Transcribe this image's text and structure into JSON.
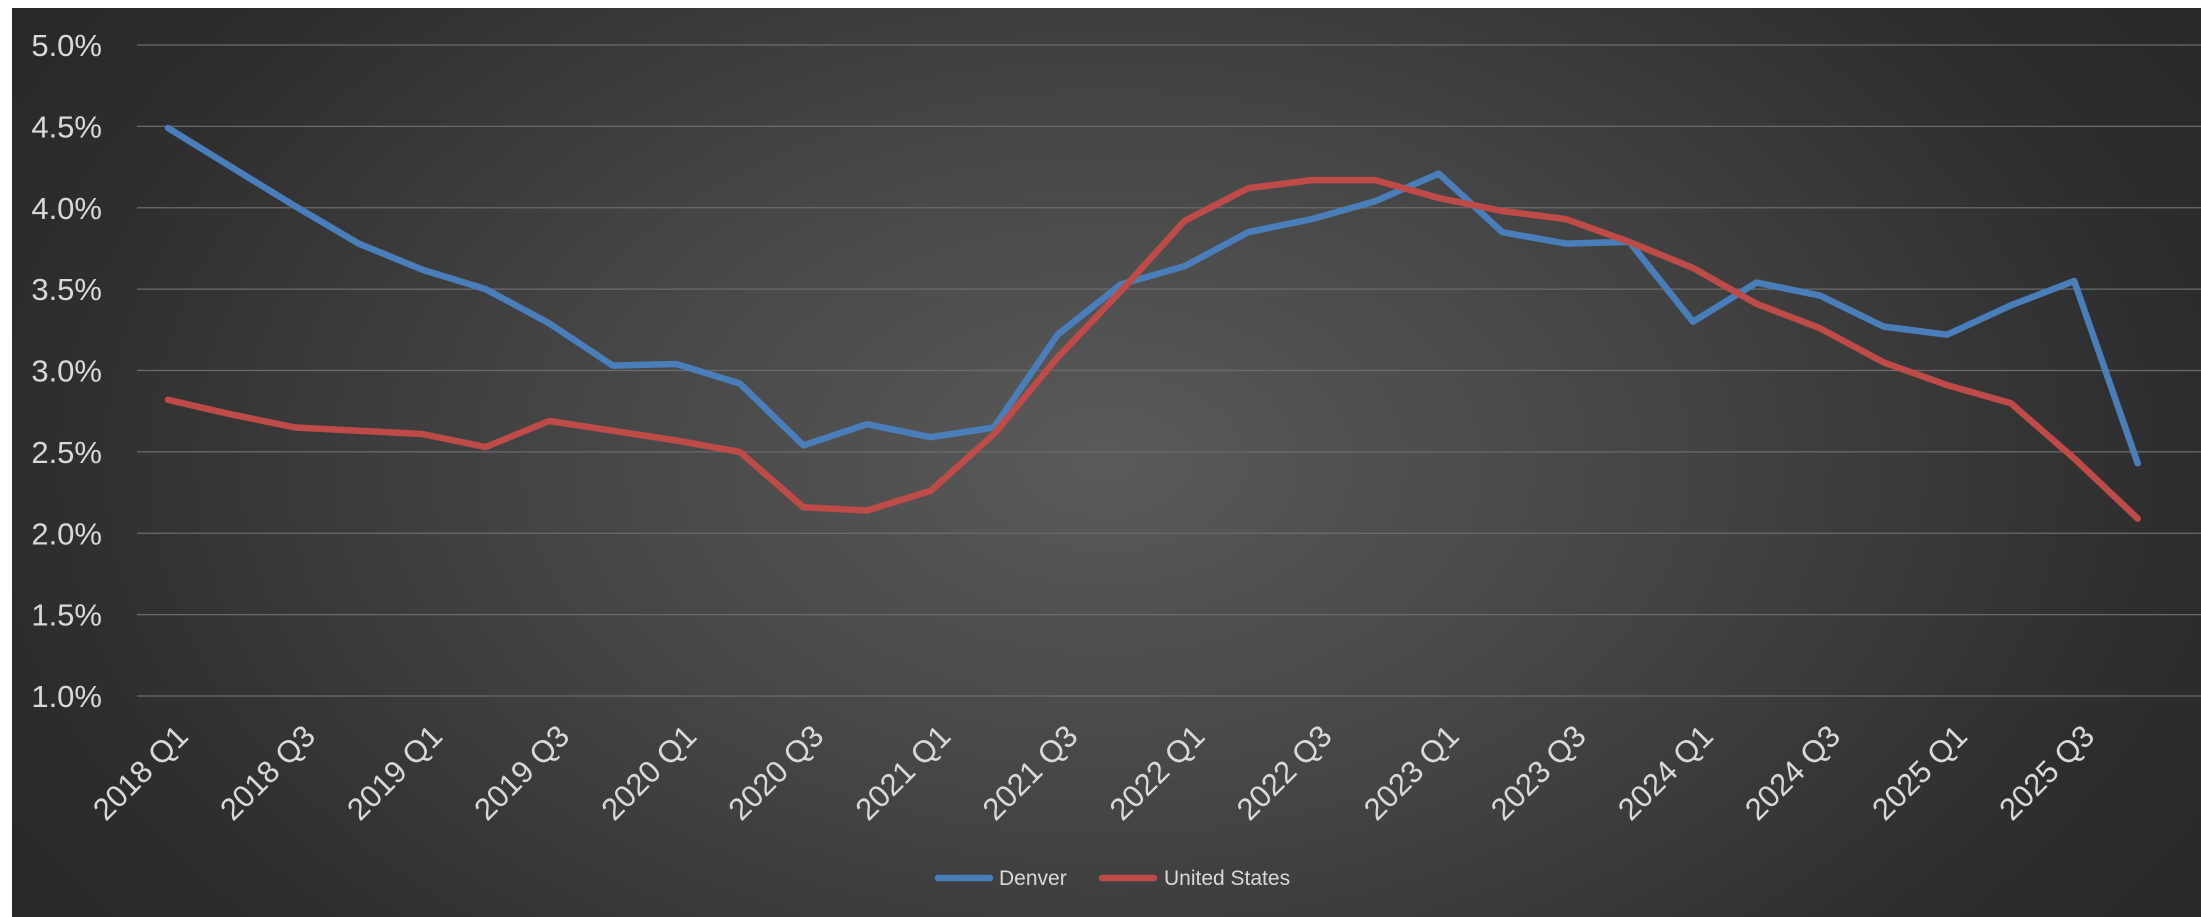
{
  "chart_data": {
    "type": "line",
    "x": [
      "2018 Q1",
      "2018 Q2",
      "2018 Q3",
      "2018 Q4",
      "2019 Q1",
      "2019 Q2",
      "2019 Q3",
      "2019 Q4",
      "2020 Q1",
      "2020 Q2",
      "2020 Q3",
      "2020 Q4",
      "2021 Q1",
      "2021 Q2",
      "2021 Q3",
      "2021 Q4",
      "2022 Q1",
      "2022 Q2",
      "2022 Q3",
      "2022 Q4",
      "2023 Q1",
      "2023 Q2",
      "2023 Q3",
      "2023 Q4",
      "2024 Q1",
      "2024 Q2",
      "2024 Q3",
      "2024 Q4",
      "2025 Q1",
      "2025 Q2",
      "2025 Q3",
      "2025 Q4"
    ],
    "x_tick_labels": [
      "2018 Q1",
      "2018 Q3",
      "2019 Q1",
      "2019 Q3",
      "2020 Q1",
      "2020 Q3",
      "2021 Q1",
      "2021 Q3",
      "2022 Q1",
      "2022 Q3",
      "2023 Q1",
      "2023 Q3",
      "2024 Q1",
      "2024 Q3",
      "2025 Q1",
      "2025 Q3"
    ],
    "y_tick_labels": [
      "5.0%",
      "4.5%",
      "4.0%",
      "3.5%",
      "3.0%",
      "2.5%",
      "2.0%",
      "1.5%",
      "1.0%"
    ],
    "ylim": [
      1.0,
      5.0
    ],
    "y_unit": "%",
    "grid": true,
    "legend_position": "bottom",
    "series": [
      {
        "name": "Denver",
        "color": "#4a7ebb",
        "values": [
          4.49,
          4.25,
          4.01,
          3.78,
          3.62,
          3.5,
          3.29,
          3.03,
          3.04,
          2.92,
          2.54,
          2.67,
          2.59,
          2.65,
          3.22,
          3.53,
          3.64,
          3.85,
          3.93,
          4.04,
          4.21,
          3.85,
          3.78,
          3.79,
          3.3,
          3.54,
          3.46,
          3.27,
          3.22,
          3.4,
          3.55,
          2.43
        ]
      },
      {
        "name": "United States",
        "color": "#be4b48",
        "values": [
          2.82,
          2.73,
          2.65,
          2.63,
          2.61,
          2.53,
          2.69,
          2.63,
          2.57,
          2.5,
          2.16,
          2.14,
          2.26,
          2.61,
          3.08,
          3.49,
          3.92,
          4.12,
          4.17,
          4.17,
          4.06,
          3.98,
          3.93,
          3.79,
          3.63,
          3.41,
          3.26,
          3.05,
          2.91,
          2.8,
          2.46,
          2.09
        ]
      }
    ]
  }
}
